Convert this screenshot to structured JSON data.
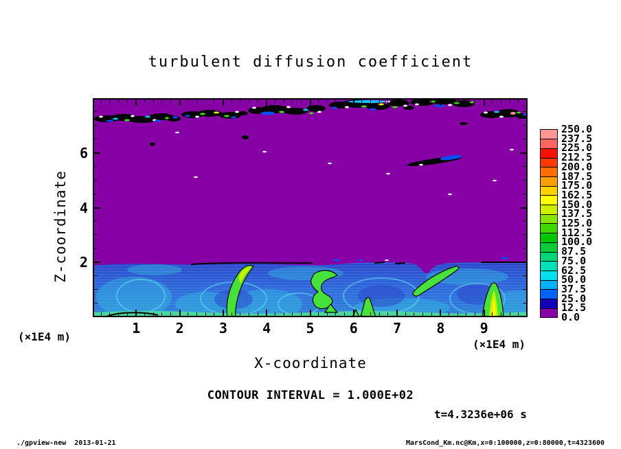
{
  "chart_data": {
    "type": "heatmap",
    "title": "turbulent diffusion coefficient",
    "xlabel": "X-coordinate",
    "ylabel": "Z-coordinate",
    "x_unit_label": "(×1E4 m)",
    "y_unit_label": "(×1E4 m)",
    "xlim": [
      0,
      10
    ],
    "ylim": [
      0,
      8
    ],
    "x_major_ticks": [
      1,
      2,
      3,
      4,
      5,
      6,
      7,
      8,
      9
    ],
    "x_minor_step": 0.2,
    "y_major_ticks": [
      2,
      4,
      6
    ],
    "y_minor_step": 0.5,
    "contour_interval_label": "CONTOUR INTERVAL = 1.000E+02",
    "time_label": "t=4.3236e+06 s",
    "colorbar": {
      "tick_labels": [
        "0.0",
        "12.5",
        "25.0",
        "37.5",
        "50.0",
        "62.5",
        "75.0",
        "87.5",
        "100.0",
        "112.5",
        "125.0",
        "137.5",
        "150.0",
        "162.5",
        "175.0",
        "187.5",
        "200.0",
        "212.5",
        "225.0",
        "237.5",
        "250.0"
      ],
      "colors_bottom_to_top": [
        "#8700A5",
        "#1400B9",
        "#0064FF",
        "#00AFFF",
        "#00E1F0",
        "#00E1B9",
        "#00D778",
        "#00CD37",
        "#00C800",
        "#41D700",
        "#87E600",
        "#CDF000",
        "#FFFF00",
        "#FFD200",
        "#FFA000",
        "#FF6E00",
        "#FF3700",
        "#FF0F00",
        "#FF645F",
        "#FF9696"
      ]
    },
    "palette": {
      "background": "#8700A5",
      "layer_blue_dark": "#2B43C9",
      "layer_blue_light": "#2E6EDC",
      "swirl_cyan": "#37C8E1",
      "swirl_stroke": "#64DCF0",
      "streak_blue": "#5A96F0",
      "bottom_green": "#46D791",
      "bottom_green_light": "#69E69B",
      "plume_green": "#46E13C",
      "plume_core": "#C8F000",
      "plume_core_bright": "#FFFF00",
      "contour_black": "#000000",
      "speck_white": "#FFFFFF",
      "speck_blue": "#0050FF",
      "speck_cyan": "#00C8FF",
      "speck_green": "#3CE100",
      "speck_yellow": "#E1F000",
      "speck_pink": "#FF9696"
    },
    "notes": [
      "Upper atmosphere (z ≈ 2–8 ×1E4 m) is a uniform minimum field (0–12.5) shown in purple.",
      "Broken cloud deck near z ≈ 7–7.6 ×1E4 m: black-contoured cells with white, blue, cyan, green, yellow and pink speckles.",
      "Turbulent boundary layer below z ≈ 2 ×1E4 m: values ~25–150, blue with cyan swirls/streaks and green updraft plumes outlined by black contours (interval 1.000E+02)."
    ]
  },
  "footer": {
    "left": "./gpview-new  2013-01-21",
    "right": "MarsCond_Km.nc@Km,x=0:100000,z=0:80000,t=4323600"
  }
}
